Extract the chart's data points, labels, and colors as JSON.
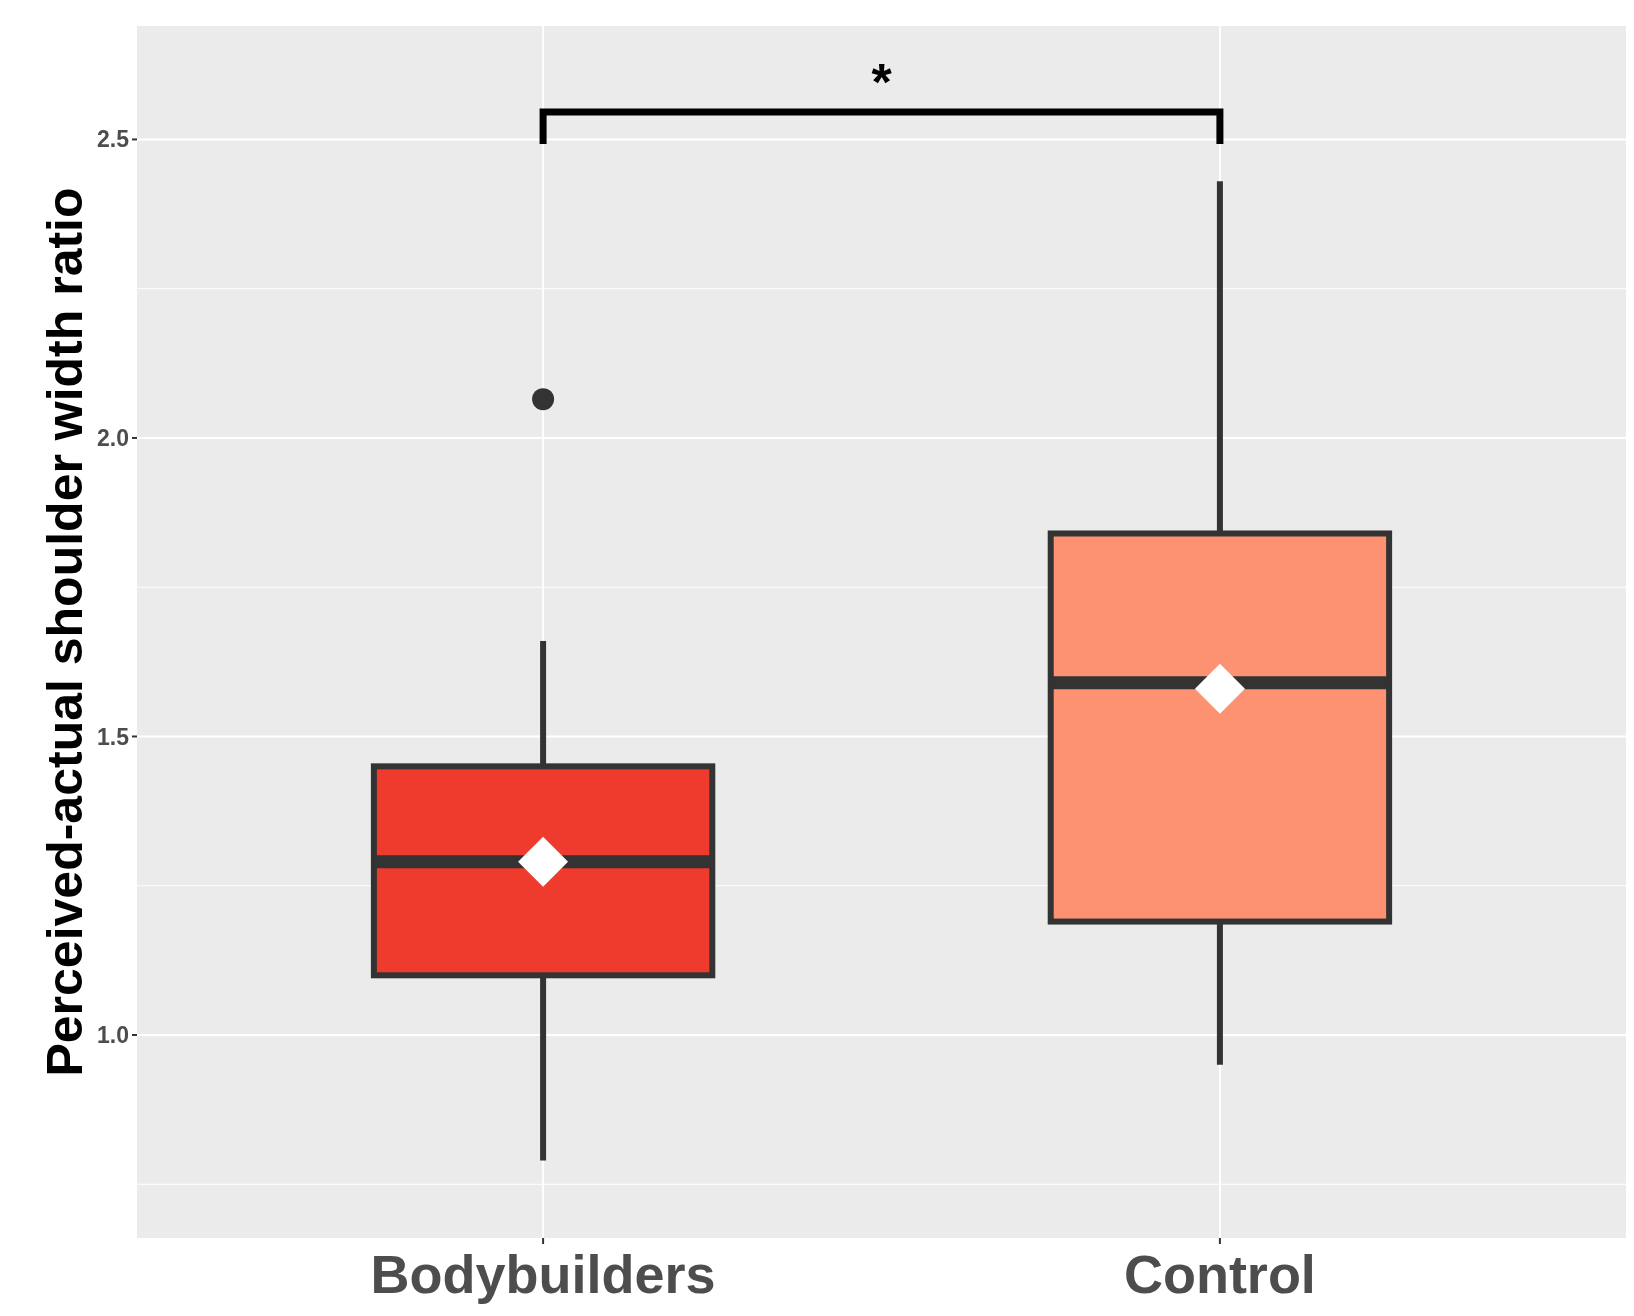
{
  "chart_data": {
    "type": "box",
    "ylabel": "Perceived-actual shoulder width ratio",
    "categories": [
      "Bodybuilders",
      "Control"
    ],
    "colors": [
      "#ee3b2e",
      "#fc9272"
    ],
    "boxes": [
      {
        "low": 0.79,
        "q1": 1.1,
        "median": 1.29,
        "q3": 1.45,
        "high": 1.66,
        "outliers": [
          2.065
        ]
      },
      {
        "low": 0.95,
        "q1": 1.19,
        "median": 1.59,
        "q3": 1.84,
        "high": 2.43
      }
    ],
    "series": [
      {
        "type": "scatter",
        "x": [
          "Bodybuilders",
          "Control"
        ],
        "values": [
          1.29,
          1.58
        ],
        "color": "#ffffff",
        "marker": "diamond"
      }
    ],
    "ylim": [
      0.66,
      2.69
    ],
    "yticks": [
      {
        "value": 1,
        "label": "1.0"
      },
      {
        "value": 1.5,
        "label": "1.5"
      },
      {
        "value": 2,
        "label": "2.0"
      },
      {
        "value": 2.5,
        "label": "2.5"
      }
    ],
    "grid": true,
    "annotations": [
      "*"
    ]
  }
}
